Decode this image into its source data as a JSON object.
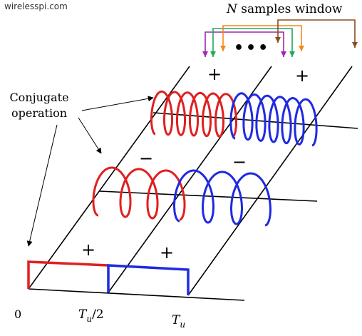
{
  "watermark": "wirelesspi.com",
  "window_label": {
    "italic": "N",
    "rest": " samples window"
  },
  "ellipsis": "•••",
  "conjugate_label": {
    "line1": "Conjugate",
    "line2": "operation"
  },
  "signs": {
    "plus": "+",
    "minus": "−"
  },
  "axis_labels": {
    "zero": "0",
    "half": {
      "sym": "T",
      "sub": "u",
      "suffix": "/2"
    },
    "full": {
      "sym": "T",
      "sub": "u"
    }
  },
  "colors": {
    "red": "#e02020",
    "blue": "#1f2ae0",
    "purple": "#9d27b0",
    "green": "#1fa85b",
    "orange": "#f28a1b",
    "brown": "#8a4b1c",
    "line": "#000000"
  }
}
